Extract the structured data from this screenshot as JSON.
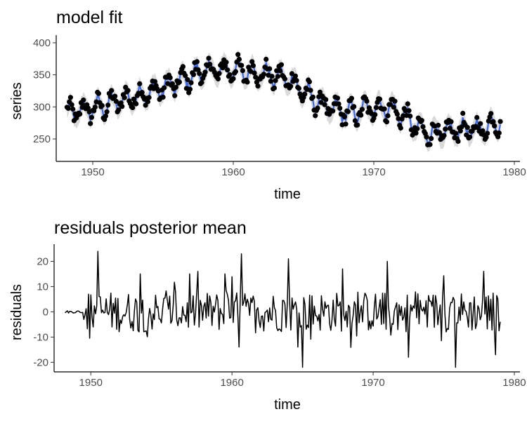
{
  "chart_data": [
    {
      "type": "line",
      "title": "model fit",
      "xlabel": "time",
      "ylabel": "series",
      "xlim": [
        1947.4,
        1980.4
      ],
      "ylim": [
        215,
        412
      ],
      "xticks": [
        1950,
        1960,
        1970,
        1980
      ],
      "yticks": [
        250,
        300,
        350,
        400
      ],
      "grid": false,
      "colors": {
        "fit": "#4169e1",
        "interval": "#d3d3d3",
        "observed": "#000000"
      },
      "knots": [
        {
          "t": 1948.2,
          "v": 290
        },
        {
          "t": 1949.2,
          "v": 294
        },
        {
          "t": 1950.5,
          "v": 300
        },
        {
          "t": 1952.0,
          "v": 310
        },
        {
          "t": 1954.0,
          "v": 322
        },
        {
          "t": 1956.0,
          "v": 338
        },
        {
          "t": 1958.0,
          "v": 356
        },
        {
          "t": 1960.0,
          "v": 358
        },
        {
          "t": 1961.0,
          "v": 355
        },
        {
          "t": 1962.5,
          "v": 350
        },
        {
          "t": 1964.0,
          "v": 343
        },
        {
          "t": 1965.5,
          "v": 315
        },
        {
          "t": 1967.0,
          "v": 296
        },
        {
          "t": 1968.5,
          "v": 290
        },
        {
          "t": 1969.8,
          "v": 298
        },
        {
          "t": 1971.0,
          "v": 300
        },
        {
          "t": 1972.2,
          "v": 285
        },
        {
          "t": 1973.5,
          "v": 260
        },
        {
          "t": 1975.0,
          "v": 259
        },
        {
          "t": 1976.0,
          "v": 265
        },
        {
          "t": 1977.5,
          "v": 264
        },
        {
          "t": 1979.0,
          "v": 278
        }
      ],
      "seasonal_amplitude": 18,
      "series_start": 1948.17,
      "series_end": 1979.0,
      "n_points": 371
    },
    {
      "type": "line",
      "title": "residuals posterior mean",
      "xlabel": "time",
      "ylabel": "residuals",
      "xlim": [
        1947.4,
        1980.4
      ],
      "ylim": [
        -23.8,
        26.8
      ],
      "xticks": [
        1950,
        1960,
        1970,
        1980
      ],
      "yticks": [
        -20,
        -10,
        0,
        10,
        20
      ],
      "grid": false,
      "colors": {
        "line": "#000000"
      },
      "peaks": [
        {
          "t": 1950.5,
          "v": 24
        },
        {
          "t": 1953.5,
          "v": 15
        },
        {
          "t": 1957.0,
          "v": 15
        },
        {
          "t": 1959.5,
          "v": 15
        },
        {
          "t": 1960.7,
          "v": 23
        },
        {
          "t": 1964.0,
          "v": 21
        },
        {
          "t": 1965.0,
          "v": -22
        },
        {
          "t": 1967.8,
          "v": 17
        },
        {
          "t": 1971.0,
          "v": 20
        },
        {
          "t": 1972.5,
          "v": -18
        },
        {
          "t": 1975.8,
          "v": -22
        },
        {
          "t": 1977.8,
          "v": 16
        },
        {
          "t": 1978.7,
          "v": -17
        }
      ]
    }
  ]
}
